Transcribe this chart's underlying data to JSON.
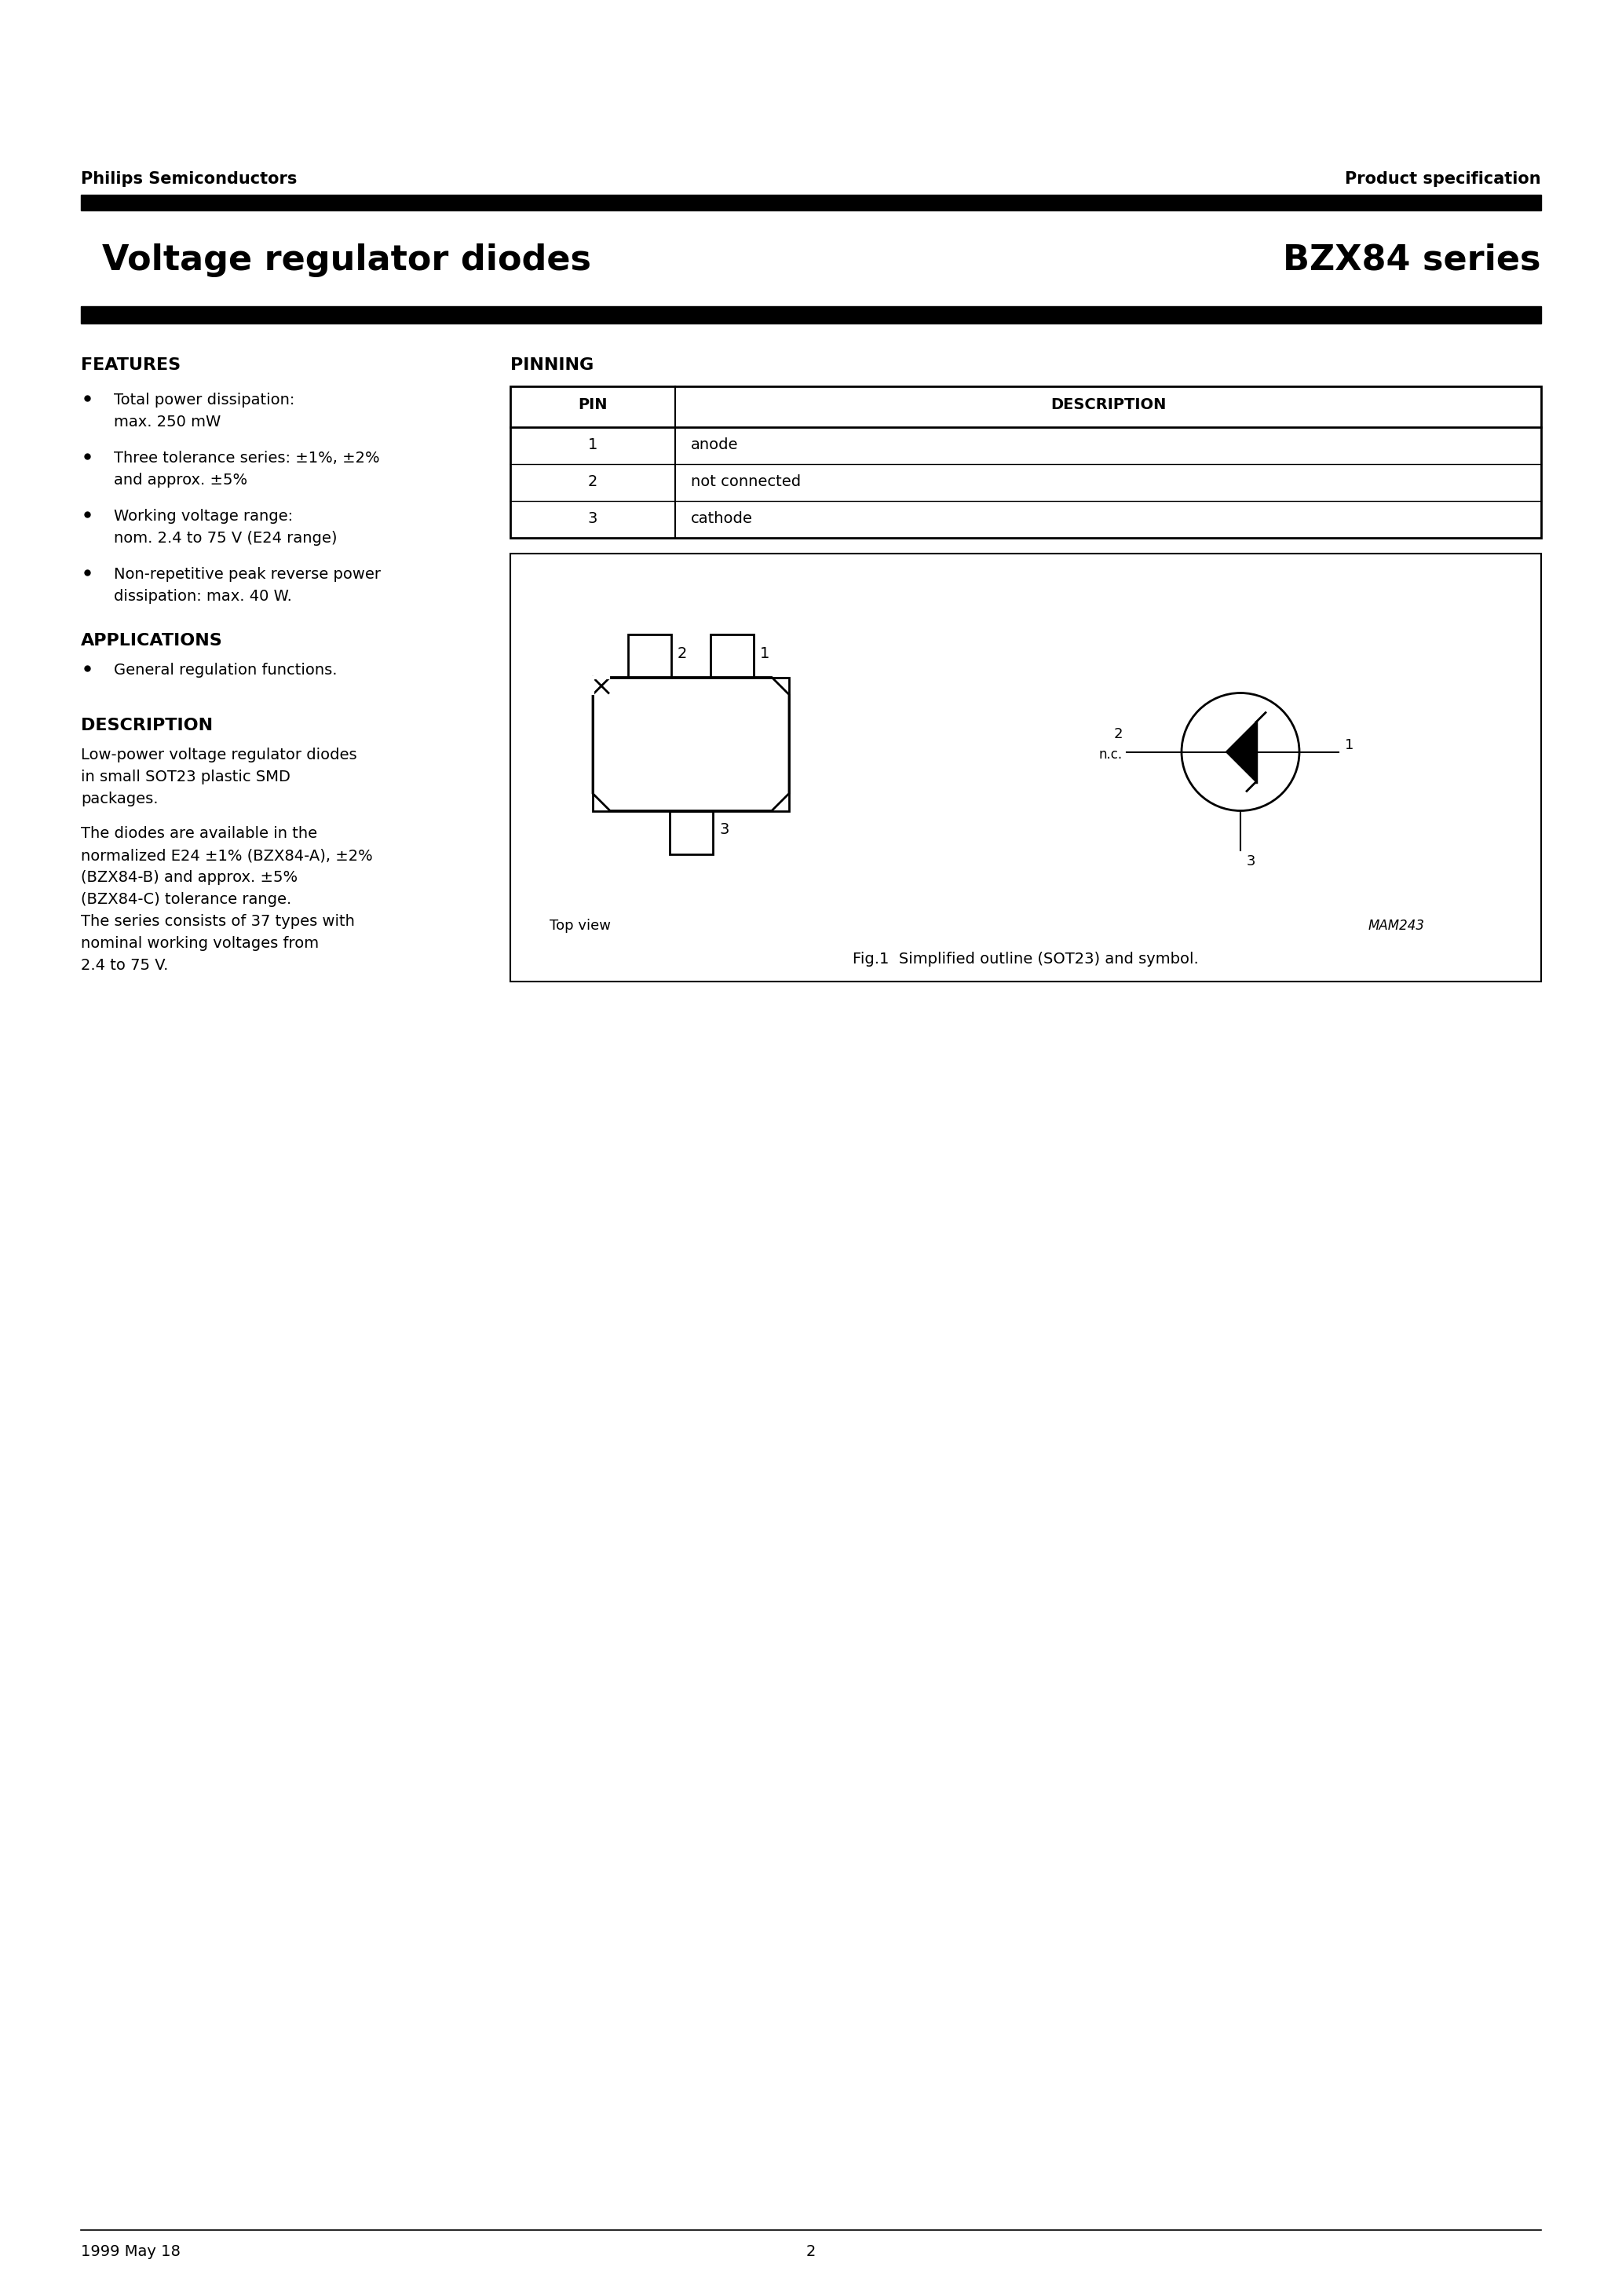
{
  "header_left": "Philips Semiconductors",
  "header_right": "Product specification",
  "title_left": "Voltage regulator diodes",
  "title_right": "BZX84 series",
  "features_title": "FEATURES",
  "features": [
    [
      "Total power dissipation:",
      "max. 250 mW"
    ],
    [
      "Three tolerance series: ±1%, ±2%",
      "and approx. ±5%"
    ],
    [
      "Working voltage range:",
      "nom. 2.4 to 75 V (E24 range)"
    ],
    [
      "Non-repetitive peak reverse power",
      "dissipation: max. 40 W."
    ]
  ],
  "applications_title": "APPLICATIONS",
  "applications": [
    "General regulation functions."
  ],
  "description_title": "DESCRIPTION",
  "desc_para1": [
    "Low-power voltage regulator diodes",
    "in small SOT23 plastic SMD",
    "packages."
  ],
  "desc_para2": [
    "The diodes are available in the",
    "normalized E24 ±1% (BZX84-A), ±2%",
    "(BZX84-B) and approx. ±5%",
    "(BZX84-C) tolerance range.",
    "The series consists of 37 types with",
    "nominal working voltages from",
    "2.4 to 75 V."
  ],
  "pinning_title": "PINNING",
  "pin_header": [
    "PIN",
    "DESCRIPTION"
  ],
  "pin_rows": [
    [
      "1",
      "anode"
    ],
    [
      "2",
      "not connected"
    ],
    [
      "3",
      "cathode"
    ]
  ],
  "fig_caption": "Fig.1  Simplified outline (SOT23) and symbol.",
  "top_view_label": "Top view",
  "mam_label": "MAM243",
  "footer_left": "1999 May 18",
  "footer_center": "2",
  "bg_color": "#ffffff"
}
